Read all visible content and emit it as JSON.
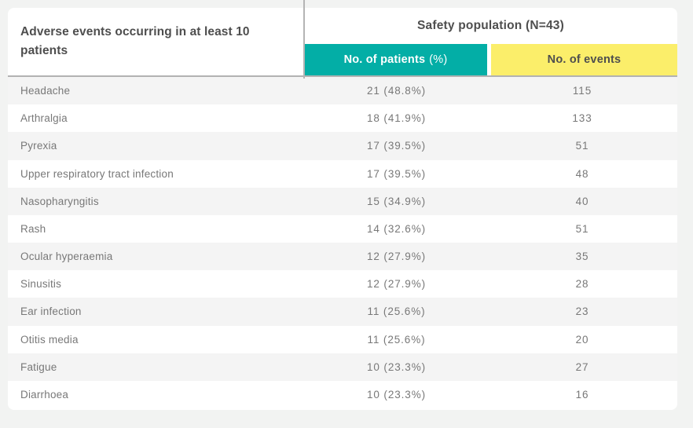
{
  "colors": {
    "page_background": "#f2f3f2",
    "card_background": "#ffffff",
    "teal_header": "#03aea6",
    "yellow_header": "#fbee6a",
    "header_text_dark": "#4e4e4e",
    "body_text": "#787878",
    "divider_grey": "#b4b4b4",
    "stripe_grey": "#f4f4f4"
  },
  "header": {
    "row_label_title": "Adverse events occurring in at least 10 patients",
    "group_title": "Safety population (N=43)",
    "col_patients_label": "No. of patients",
    "col_patients_suffix": "(%)",
    "col_events_label": "No. of events"
  },
  "rows": [
    {
      "event": "Headache",
      "patients": "21 (48.8%)",
      "events": "115"
    },
    {
      "event": "Arthralgia",
      "patients": "18 (41.9%)",
      "events": "133"
    },
    {
      "event": "Pyrexia",
      "patients": "17 (39.5%)",
      "events": "51"
    },
    {
      "event": "Upper respiratory tract infection",
      "patients": "17 (39.5%)",
      "events": "48"
    },
    {
      "event": "Nasopharyngitis",
      "patients": "15 (34.9%)",
      "events": "40"
    },
    {
      "event": "Rash",
      "patients": "14 (32.6%)",
      "events": "51"
    },
    {
      "event": "Ocular hyperaemia",
      "patients": "12 (27.9%)",
      "events": "35"
    },
    {
      "event": "Sinusitis",
      "patients": "12 (27.9%)",
      "events": "28"
    },
    {
      "event": "Ear infection",
      "patients": "11 (25.6%)",
      "events": "23"
    },
    {
      "event": "Otitis media",
      "patients": "11 (25.6%)",
      "events": "20"
    },
    {
      "event": "Fatigue",
      "patients": "10 (23.3%)",
      "events": "27"
    },
    {
      "event": "Diarrhoea",
      "patients": "10 (23.3%)",
      "events": "16"
    }
  ],
  "chart_data": {
    "type": "table",
    "title": "Adverse events occurring in at least 10 patients",
    "group_header": "Safety population (N=43)",
    "columns": [
      "Adverse event",
      "No. of patients (%)",
      "No. of events"
    ],
    "rows": [
      [
        "Headache",
        "21 (48.8%)",
        115
      ],
      [
        "Arthralgia",
        "18 (41.9%)",
        133
      ],
      [
        "Pyrexia",
        "17 (39.5%)",
        51
      ],
      [
        "Upper respiratory tract infection",
        "17 (39.5%)",
        48
      ],
      [
        "Nasopharyngitis",
        "15 (34.9%)",
        40
      ],
      [
        "Rash",
        "14 (32.6%)",
        51
      ],
      [
        "Ocular hyperaemia",
        "12 (27.9%)",
        35
      ],
      [
        "Sinusitis",
        "12 (27.9%)",
        28
      ],
      [
        "Ear infection",
        "11 (25.6%)",
        23
      ],
      [
        "Otitis media",
        "11 (25.6%)",
        20
      ],
      [
        "Fatigue",
        "10 (23.3%)",
        27
      ],
      [
        "Diarrhoea",
        "10 (23.3%)",
        16
      ]
    ]
  }
}
